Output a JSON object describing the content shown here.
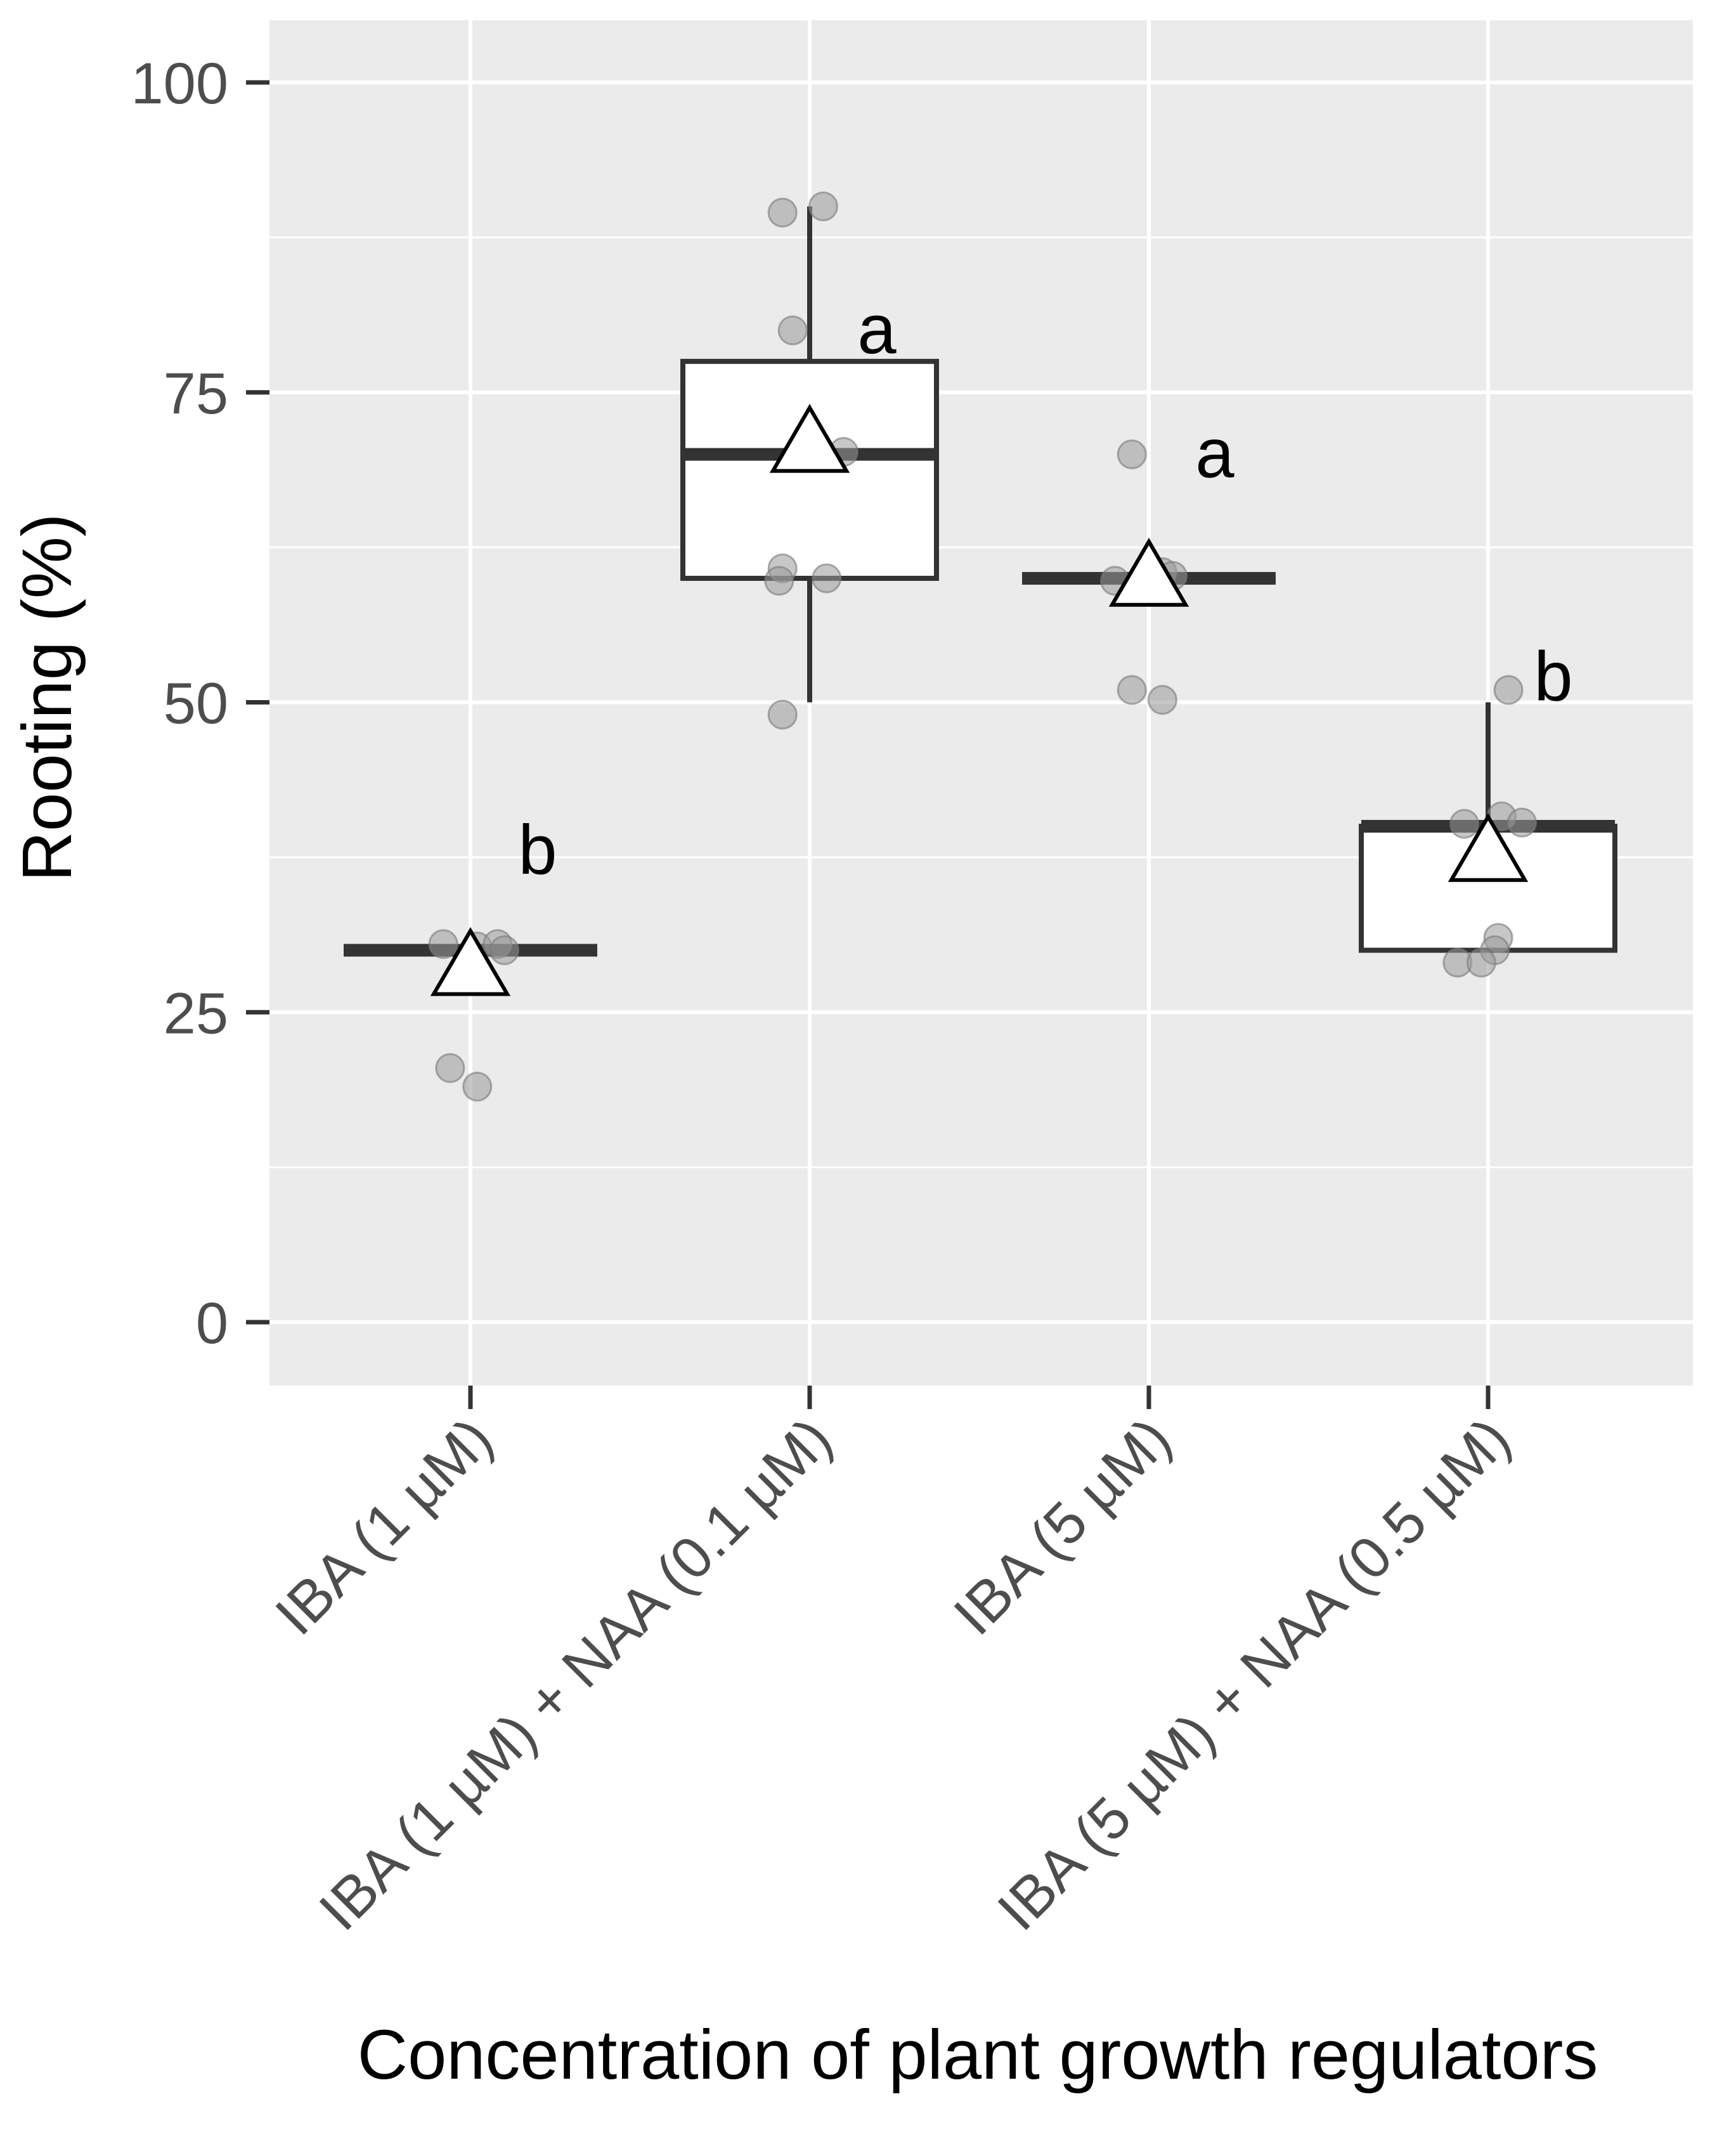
{
  "chart_data": {
    "type": "boxplot",
    "title": "",
    "xlabel": "Concentration of plant growth regulators",
    "ylabel": "Rooting (%)",
    "ylim": [
      -10,
      105
    ],
    "yticks": [
      0,
      25,
      50,
      75,
      100
    ],
    "yticks_labels": [
      "0",
      "25",
      "50",
      "75",
      "100"
    ],
    "grid": true,
    "legend": "none",
    "categories": [
      "IBA (1 µM)",
      "IBA (1 µM) + NAA (0.1 µM)",
      "IBA (5 µM)",
      "IBA (5 µM) + NAA (0.5 µM)"
    ],
    "boxes": [
      {
        "q1": 30,
        "median": 30,
        "q3": 30,
        "whisker_low": 30,
        "whisker_high": 30,
        "mean": 28.6,
        "letter": "b"
      },
      {
        "q1": 60,
        "median": 70,
        "q3": 77.5,
        "whisker_low": 50,
        "whisker_high": 90,
        "mean": 70.8,
        "letter": "a"
      },
      {
        "q1": 60,
        "median": 60,
        "q3": 60,
        "whisker_low": 60,
        "whisker_high": 60,
        "mean": 60,
        "letter": "a"
      },
      {
        "q1": 30,
        "median": 40,
        "q3": 40,
        "whisker_low": 30,
        "whisker_high": 50,
        "mean": 37.8,
        "letter": "b"
      }
    ],
    "points": [
      [
        [
          -0.08,
          30.5
        ],
        [
          0.02,
          30.3
        ],
        [
          0.08,
          30.5
        ],
        [
          0.1,
          30
        ],
        [
          -0.06,
          20.5
        ],
        [
          0.02,
          19
        ]
      ],
      [
        [
          -0.08,
          89.5
        ],
        [
          0.04,
          90
        ],
        [
          -0.05,
          80
        ],
        [
          0.1,
          70.2
        ],
        [
          -0.08,
          60.8
        ],
        [
          0.05,
          60
        ],
        [
          -0.09,
          59.8
        ],
        [
          -0.08,
          49
        ]
      ],
      [
        [
          -0.05,
          70
        ],
        [
          -0.1,
          59.8
        ],
        [
          0.04,
          60.5
        ],
        [
          0.07,
          60.2
        ],
        [
          -0.05,
          51
        ],
        [
          0.04,
          50.2
        ]
      ],
      [
        [
          0.06,
          51
        ],
        [
          -0.07,
          40.2
        ],
        [
          0.04,
          40.8
        ],
        [
          0.1,
          40.3
        ],
        [
          0.03,
          31
        ],
        [
          0.02,
          30
        ],
        [
          -0.09,
          29
        ],
        [
          -0.02,
          29
        ]
      ]
    ],
    "colors": {
      "panel": "#ebebeb",
      "grid": "#ffffff",
      "box_edge": "#333333",
      "point": "#999999",
      "mean_marker": "#ffffff"
    }
  }
}
